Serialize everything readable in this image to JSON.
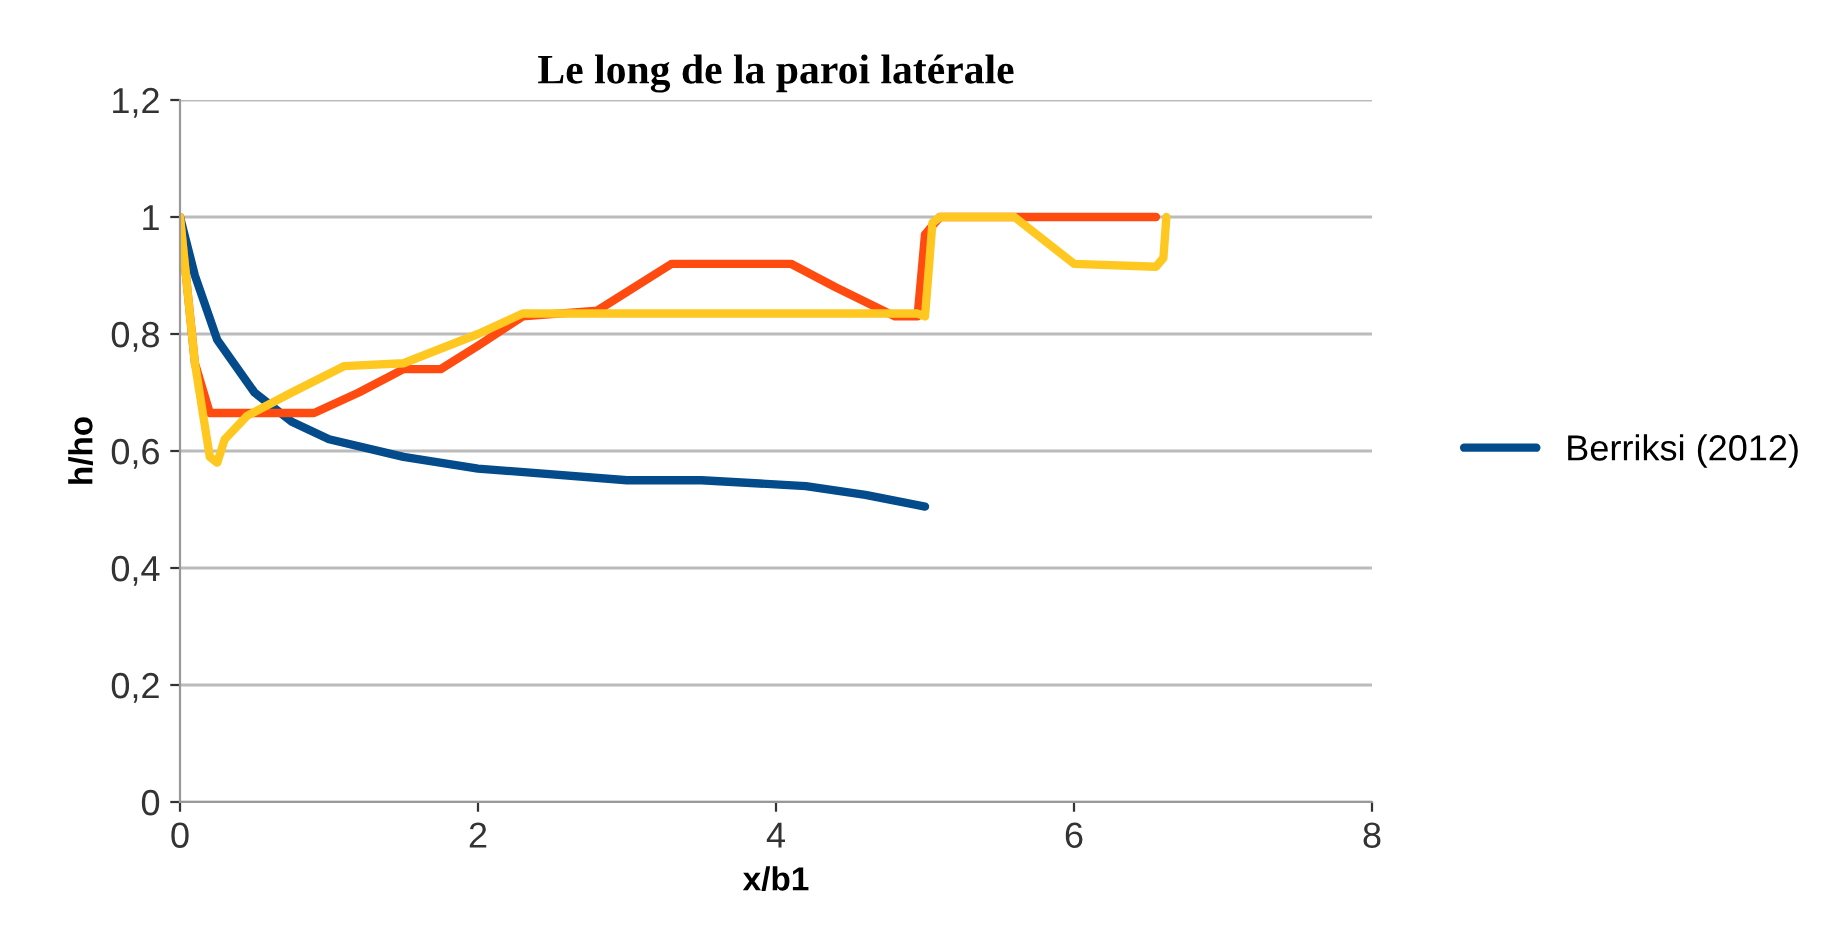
{
  "chart_data": {
    "type": "line",
    "title": "Le long de la paroi latérale",
    "xlabel": "x/b1",
    "ylabel": "h/ho",
    "xlim": [
      0,
      8
    ],
    "xticks": [
      0,
      2,
      4,
      6,
      8
    ],
    "ylim": [
      0,
      1.2
    ],
    "yticks": [
      {
        "value": 0,
        "label": "0"
      },
      {
        "value": 0.2,
        "label": "0,2"
      },
      {
        "value": 0.4,
        "label": "0,4"
      },
      {
        "value": 0.6,
        "label": "0,6"
      },
      {
        "value": 0.8,
        "label": "0,8"
      },
      {
        "value": 1,
        "label": "1"
      },
      {
        "value": 1.2,
        "label": "1,2"
      }
    ],
    "grid": "y",
    "legend": "right",
    "marker": "none",
    "line_style": "solid",
    "series": [
      {
        "name": "Berriksi (2012)",
        "color": "#044b8c",
        "x": [
          0,
          0.1,
          0.25,
          0.5,
          0.75,
          1,
          1.5,
          2,
          3,
          3.5,
          4.2,
          4.6,
          5
        ],
        "values": [
          1,
          0.9,
          0.79,
          0.7,
          0.65,
          0.62,
          0.59,
          0.57,
          0.55,
          0.55,
          0.54,
          0.525,
          0.505
        ]
      },
      {
        "color": "#ff4a10",
        "x": [
          0,
          0.1,
          0.2,
          0.9,
          1.2,
          1.5,
          1.75,
          2,
          2.3,
          2.8,
          3.3,
          4.1,
          4.4,
          4.8,
          4.95,
          5.0,
          5.1,
          6.55
        ],
        "values": [
          1,
          0.75,
          0.665,
          0.665,
          0.7,
          0.74,
          0.74,
          0.78,
          0.83,
          0.84,
          0.92,
          0.92,
          0.88,
          0.83,
          0.83,
          0.97,
          1.0,
          1.0
        ]
      },
      {
        "color": "#ffc820",
        "x": [
          0,
          0.1,
          0.2,
          0.25,
          0.3,
          0.45,
          0.75,
          1.1,
          1.5,
          2,
          2.3,
          4.95,
          5.0,
          5.05,
          5.1,
          5.6,
          6.0,
          6.55,
          6.6,
          6.62
        ],
        "values": [
          1,
          0.75,
          0.59,
          0.58,
          0.62,
          0.66,
          0.7,
          0.745,
          0.75,
          0.8,
          0.835,
          0.835,
          0.83,
          0.99,
          1.0,
          1.0,
          0.92,
          0.915,
          0.93,
          1.0
        ]
      }
    ]
  }
}
